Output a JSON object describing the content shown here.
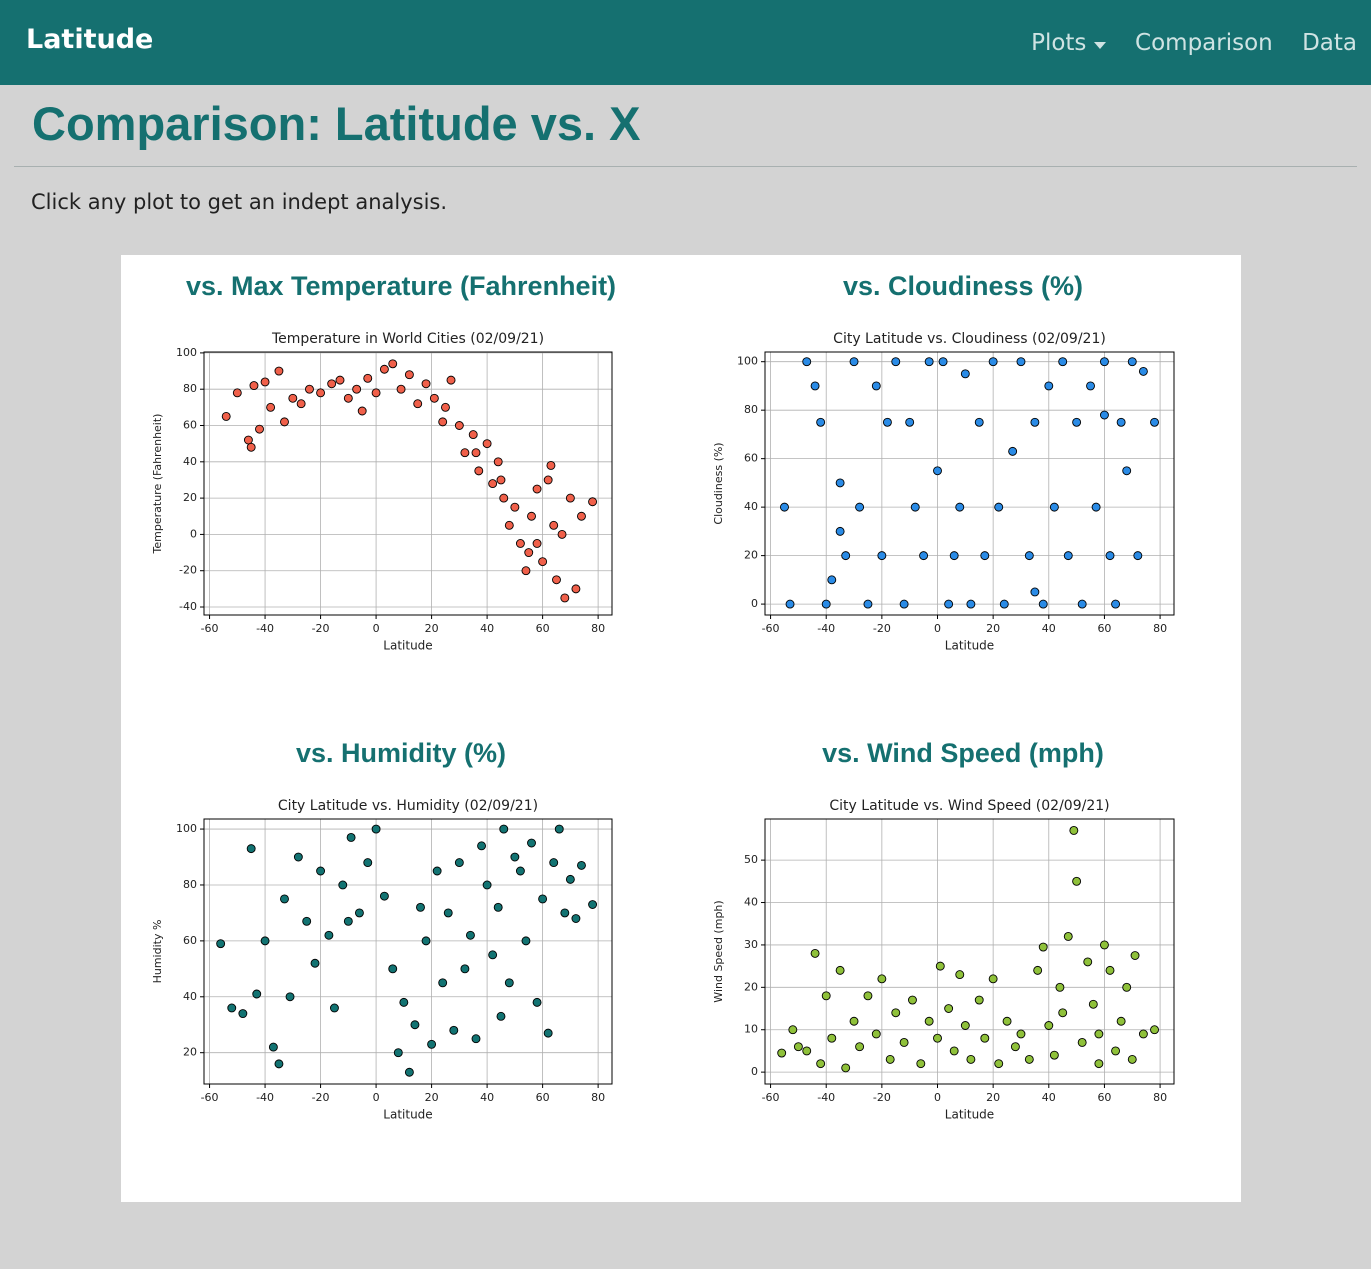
{
  "navbar": {
    "brand": "Latitude",
    "links": [
      "Plots",
      "Comparison",
      "Data"
    ]
  },
  "header": {
    "title": "Comparison: Latitude vs. X",
    "intro": "Click any plot to get an indept analysis."
  },
  "panels": [
    {
      "heading": "vs. Max Temperature (Fahrenheit)"
    },
    {
      "heading": "vs. Cloudiness (%)"
    },
    {
      "heading": "vs. Humidity (%)"
    },
    {
      "heading": "vs. Wind Speed (mph)"
    }
  ],
  "chart_data": [
    {
      "type": "scatter",
      "title": "Temperature in World Cities (02/09/21)",
      "x_label": "Latitude",
      "y_label": "Temperature (Fahrenheit)",
      "color": "#f0604a",
      "edgecolor": "#000000",
      "grid": true,
      "xlim": [
        -62,
        85
      ],
      "ylim": [
        -44.4,
        100.5
      ],
      "xticks": [
        -60,
        -40,
        -20,
        0,
        20,
        40,
        60,
        80
      ],
      "yticks": [
        -40,
        -20,
        0,
        20,
        40,
        60,
        80,
        100
      ],
      "x": [
        -54,
        -50,
        -46,
        -45,
        -44,
        -42,
        -40,
        -38,
        -35,
        -33,
        -30,
        -27,
        -24,
        -20,
        -16,
        -13,
        -10,
        -7,
        -3,
        0,
        3,
        6,
        9,
        12,
        15,
        18,
        21,
        24,
        27,
        30,
        32,
        35,
        37,
        40,
        42,
        44,
        46,
        48,
        50,
        52,
        54,
        56,
        58,
        60,
        62,
        63,
        65,
        67,
        68,
        70,
        72,
        74,
        78,
        55,
        45,
        25,
        -5,
        36,
        58,
        64
      ],
      "values": [
        65,
        78,
        52,
        48,
        82,
        58,
        84,
        70,
        90,
        62,
        75,
        72,
        80,
        78,
        83,
        85,
        75,
        80,
        86,
        78,
        91,
        94,
        80,
        88,
        72,
        83,
        75,
        62,
        85,
        60,
        45,
        55,
        35,
        50,
        28,
        40,
        20,
        5,
        15,
        -5,
        -20,
        10,
        25,
        -15,
        30,
        38,
        -25,
        0,
        -35,
        20,
        -30,
        10,
        18,
        -10,
        30,
        70,
        68,
        45,
        -5,
        5
      ]
    },
    {
      "type": "scatter",
      "title": "City Latitude vs. Cloudiness (02/09/21)",
      "x_label": "Latitude",
      "y_label": "Cloudiness (%)",
      "color": "#2a8be6",
      "edgecolor": "#000000",
      "grid": true,
      "xlim": [
        -62,
        85
      ],
      "ylim": [
        -4.5,
        104
      ],
      "xticks": [
        -60,
        -40,
        -20,
        0,
        20,
        40,
        60,
        80
      ],
      "yticks": [
        0,
        20,
        40,
        60,
        80,
        100
      ],
      "x": [
        -55,
        -53,
        -47,
        -44,
        -42,
        -40,
        -38,
        -35,
        -33,
        -30,
        -28,
        -25,
        -22,
        -20,
        -18,
        -15,
        -12,
        -10,
        -8,
        -5,
        -3,
        0,
        2,
        4,
        6,
        8,
        10,
        12,
        15,
        17,
        20,
        22,
        24,
        27,
        30,
        33,
        35,
        38,
        40,
        42,
        45,
        47,
        50,
        52,
        55,
        57,
        60,
        62,
        64,
        66,
        68,
        70,
        72,
        74,
        78,
        60,
        35,
        -35
      ],
      "values": [
        40,
        0,
        100,
        90,
        75,
        0,
        10,
        50,
        20,
        100,
        40,
        0,
        90,
        20,
        75,
        100,
        0,
        75,
        40,
        20,
        100,
        55,
        100,
        0,
        20,
        40,
        95,
        0,
        75,
        20,
        100,
        40,
        0,
        63,
        100,
        20,
        75,
        0,
        90,
        40,
        100,
        20,
        75,
        0,
        90,
        40,
        100,
        20,
        0,
        75,
        55,
        100,
        20,
        96,
        75,
        78,
        5,
        30
      ]
    },
    {
      "type": "scatter",
      "title": "City Latitude vs. Humidity (02/09/21)",
      "x_label": "Latitude",
      "y_label": "Humidity %",
      "color": "#127372",
      "edgecolor": "#000000",
      "grid": true,
      "xlim": [
        -62,
        85
      ],
      "ylim": [
        8.8,
        103.6
      ],
      "xticks": [
        -60,
        -40,
        -20,
        0,
        20,
        40,
        60,
        80
      ],
      "yticks": [
        20,
        40,
        60,
        80,
        100
      ],
      "x": [
        -56,
        -52,
        -48,
        -45,
        -43,
        -40,
        -37,
        -35,
        -33,
        -31,
        -28,
        -25,
        -22,
        -20,
        -17,
        -15,
        -12,
        -9,
        -6,
        -3,
        0,
        3,
        6,
        8,
        10,
        12,
        14,
        16,
        18,
        20,
        22,
        24,
        26,
        28,
        30,
        32,
        34,
        36,
        38,
        40,
        42,
        44,
        46,
        48,
        50,
        52,
        54,
        56,
        58,
        60,
        62,
        64,
        66,
        68,
        70,
        72,
        74,
        78,
        -10,
        45
      ],
      "values": [
        59,
        36,
        34,
        93,
        41,
        60,
        22,
        16,
        75,
        40,
        90,
        67,
        52,
        85,
        62,
        36,
        80,
        97,
        70,
        88,
        100,
        76,
        50,
        20,
        38,
        13,
        30,
        72,
        60,
        23,
        85,
        45,
        70,
        28,
        88,
        50,
        62,
        25,
        94,
        80,
        55,
        72,
        100,
        45,
        90,
        85,
        60,
        95,
        38,
        75,
        27,
        88,
        100,
        70,
        82,
        68,
        87,
        73,
        67,
        33
      ]
    },
    {
      "type": "scatter",
      "title": "City Latitude vs. Wind Speed (02/09/21)",
      "x_label": "Latitude",
      "y_label": "Wind Speed (mph)",
      "color": "#8fc13a",
      "edgecolor": "#000000",
      "grid": true,
      "xlim": [
        -62,
        85
      ],
      "ylim": [
        -2.8,
        59.7
      ],
      "xticks": [
        -60,
        -40,
        -20,
        0,
        20,
        40,
        60,
        80
      ],
      "yticks": [
        0,
        10,
        20,
        30,
        40,
        50
      ],
      "x": [
        -56,
        -52,
        -47,
        -44,
        -42,
        -40,
        -38,
        -35,
        -33,
        -30,
        -28,
        -25,
        -22,
        -20,
        -17,
        -15,
        -12,
        -9,
        -6,
        -3,
        0,
        1,
        4,
        6,
        8,
        10,
        12,
        15,
        17,
        20,
        22,
        25,
        28,
        30,
        33,
        36,
        38,
        40,
        42,
        45,
        47,
        49,
        50,
        52,
        54,
        56,
        58,
        60,
        62,
        64,
        66,
        68,
        70,
        71,
        74,
        78,
        -50,
        44,
        58
      ],
      "values": [
        4.5,
        10,
        5,
        28,
        2,
        18,
        8,
        24,
        1,
        12,
        6,
        18,
        9,
        22,
        3,
        14,
        7,
        17,
        2,
        12,
        8,
        25,
        15,
        5,
        23,
        11,
        3,
        17,
        8,
        22,
        2,
        12,
        6,
        9,
        3,
        24,
        29.5,
        11,
        4,
        14,
        32,
        57,
        45,
        7,
        26,
        16,
        9,
        30,
        24,
        5,
        12,
        20,
        3,
        27.5,
        9,
        10,
        6,
        20,
        2
      ]
    }
  ]
}
